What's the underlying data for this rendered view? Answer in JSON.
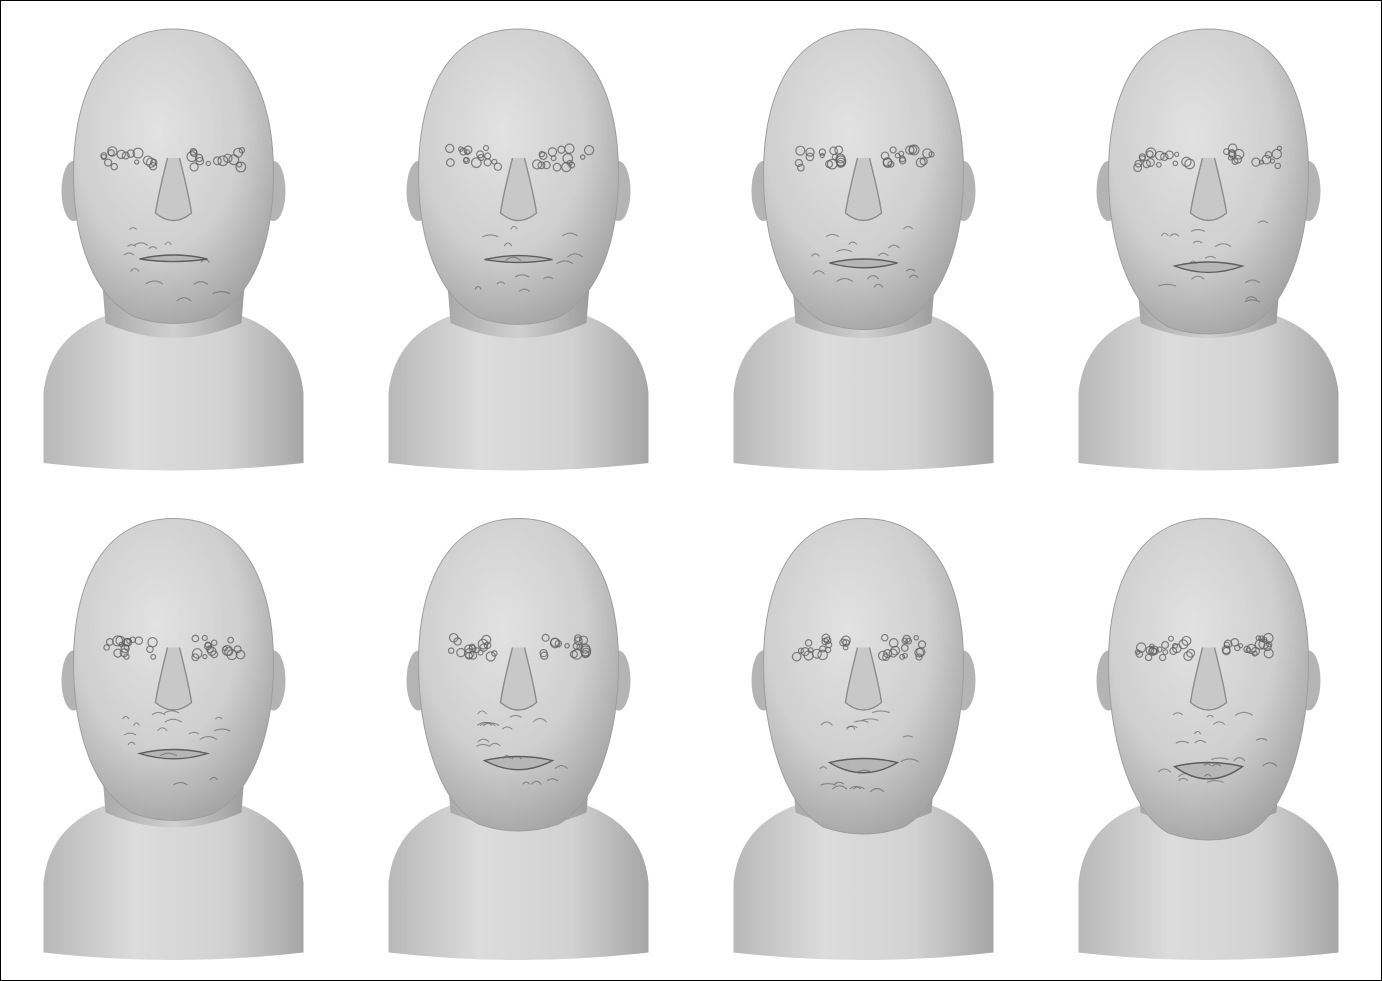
{
  "figure": {
    "rows": 2,
    "columns": 4,
    "subject": "head-bust-scan",
    "colors": {
      "background": "#ffffff",
      "border": "#000000",
      "surface_light": "#dedede",
      "surface_mid": "#c4c4c4",
      "surface_dark": "#8a8a8a",
      "artifact_line": "#5e5e5e"
    },
    "panels": [
      {
        "row": 0,
        "col": 0,
        "mouth_open": 0.05,
        "artifact_level": 0.35
      },
      {
        "row": 0,
        "col": 1,
        "mouth_open": 0.08,
        "artifact_level": 0.4
      },
      {
        "row": 0,
        "col": 2,
        "mouth_open": 0.25,
        "artifact_level": 0.45
      },
      {
        "row": 0,
        "col": 3,
        "mouth_open": 0.4,
        "artifact_level": 0.45
      },
      {
        "row": 1,
        "col": 0,
        "mouth_open": 0.3,
        "artifact_level": 0.55
      },
      {
        "row": 1,
        "col": 1,
        "mouth_open": 0.65,
        "artifact_level": 0.6
      },
      {
        "row": 1,
        "col": 2,
        "mouth_open": 0.75,
        "artifact_level": 0.6
      },
      {
        "row": 1,
        "col": 3,
        "mouth_open": 0.95,
        "artifact_level": 0.75
      }
    ]
  }
}
